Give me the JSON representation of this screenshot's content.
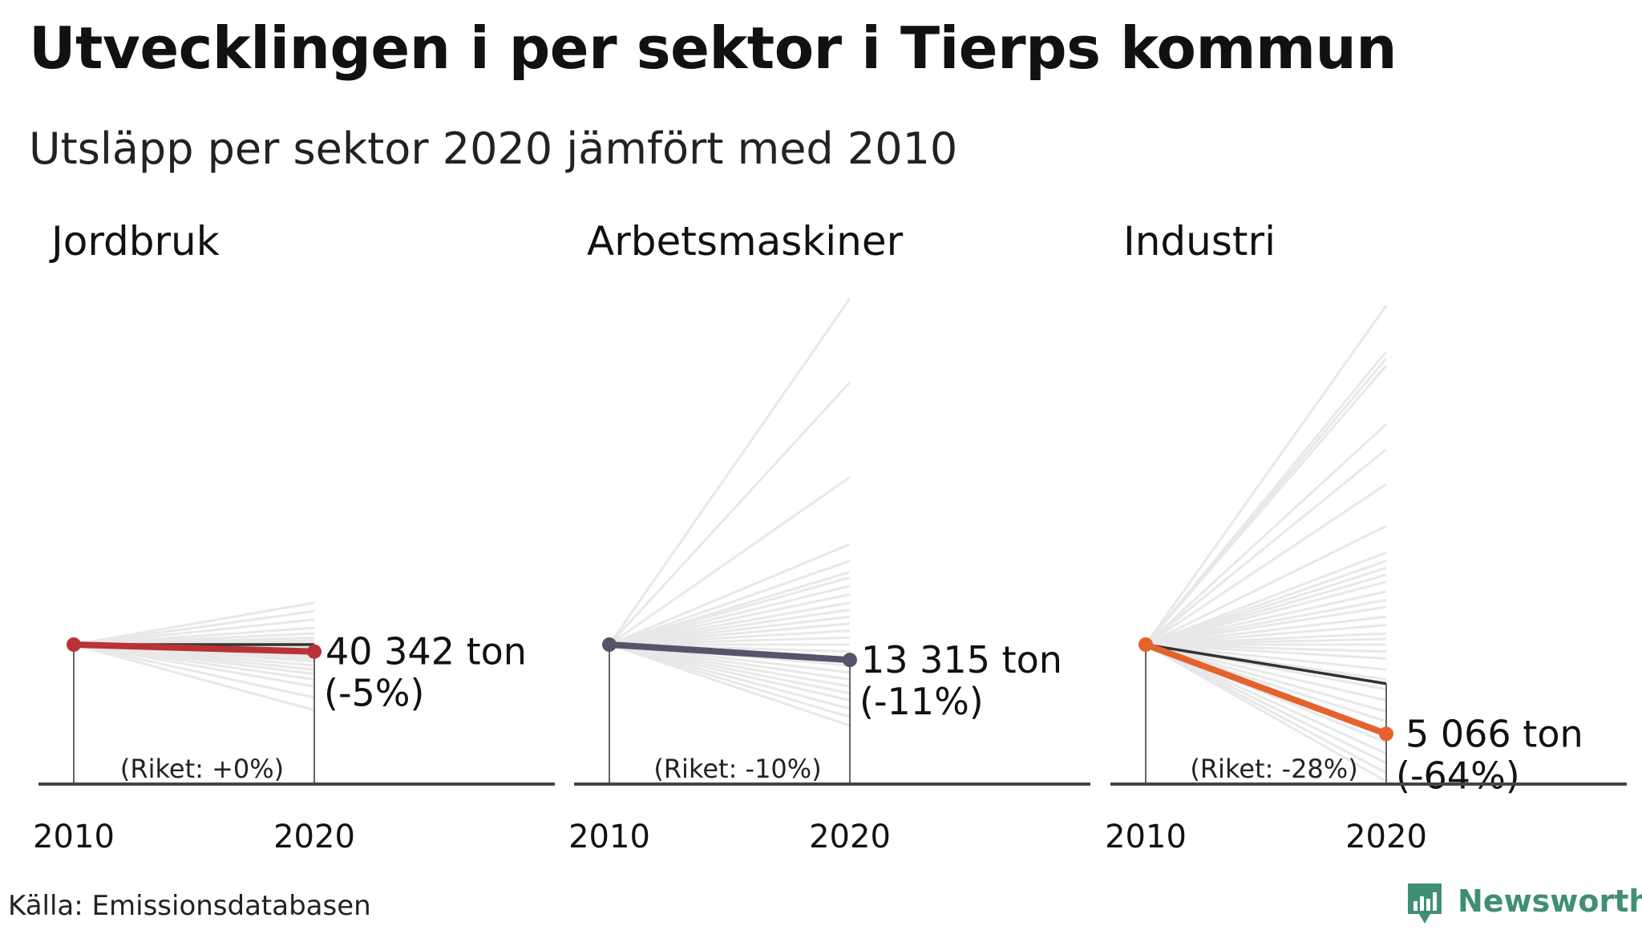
{
  "title": "Utvecklingen i per sektor i Tierps kommun",
  "subtitle": "Utsläpp per sektor 2020 jämfört med 2010",
  "source": "Källa: Emissionsdatabasen",
  "brand": {
    "name": "Newsworthy",
    "icon": "bar-chart-badge-icon",
    "color": "#3f8f77"
  },
  "chart_data": [
    {
      "type": "line",
      "title": "Jordbruk",
      "x": [
        2010,
        2020
      ],
      "series": [
        {
          "name": "Tierp",
          "role": "highlight",
          "color": "#b83238",
          "values": [
            42466,
            40342
          ]
        },
        {
          "name": "Riket",
          "role": "national",
          "color": "#333333",
          "values": [
            42466,
            42466
          ]
        }
      ],
      "background_changes_pct": [
        -47,
        -38,
        -30,
        -25,
        -21,
        -18,
        -15,
        -12,
        -10,
        -8,
        -6,
        -4,
        -2,
        1,
        3,
        5,
        8,
        12,
        18,
        24,
        30
      ],
      "value_label": "40 342 ton",
      "change_label": "(-5%)",
      "national_label": "(Riket: +0%)",
      "xlabels": [
        "2010",
        "2020"
      ]
    },
    {
      "type": "line",
      "title": "Arbetsmaskiner",
      "x": [
        2010,
        2020
      ],
      "series": [
        {
          "name": "Tierp",
          "role": "highlight",
          "color": "#55556a",
          "values": [
            14960,
            13315
          ]
        },
        {
          "name": "Riket",
          "role": "national",
          "color": "#333333",
          "values": [
            14960,
            13464
          ]
        }
      ],
      "background_changes_pct": [
        -58,
        -52,
        -46,
        -40,
        -35,
        -30,
        -25,
        -20,
        -15,
        -10,
        -5,
        0,
        5,
        10,
        15,
        20,
        25,
        30,
        36,
        42,
        48,
        52,
        60,
        72,
        120,
        188,
        248
      ],
      "value_label": "13 315 ton",
      "change_label": "(-11%)",
      "national_label": "(Riket: -10%)",
      "xlabels": [
        "2010",
        "2020"
      ]
    },
    {
      "type": "line",
      "title": "Industri",
      "x": [
        2010,
        2020
      ],
      "series": [
        {
          "name": "Tierp",
          "role": "highlight",
          "color": "#e5622c",
          "values": [
            14072,
            5066
          ]
        },
        {
          "name": "Riket",
          "role": "national",
          "color": "#333333",
          "values": [
            14072,
            10132
          ]
        }
      ],
      "background_changes_pct": [
        -98,
        -92,
        -85,
        -78,
        -70,
        -62,
        -55,
        -48,
        -40,
        -32,
        -25,
        -18,
        -10,
        -5,
        0,
        4,
        8,
        14,
        20,
        27,
        32,
        38,
        45,
        50,
        55,
        60,
        66,
        85,
        115,
        140,
        158,
        200,
        205,
        210,
        243
      ],
      "value_label": "5 066 ton",
      "change_label": "(-64%)",
      "national_label": "(Riket: -28%)",
      "xlabels": [
        "2010",
        "2020"
      ]
    }
  ]
}
